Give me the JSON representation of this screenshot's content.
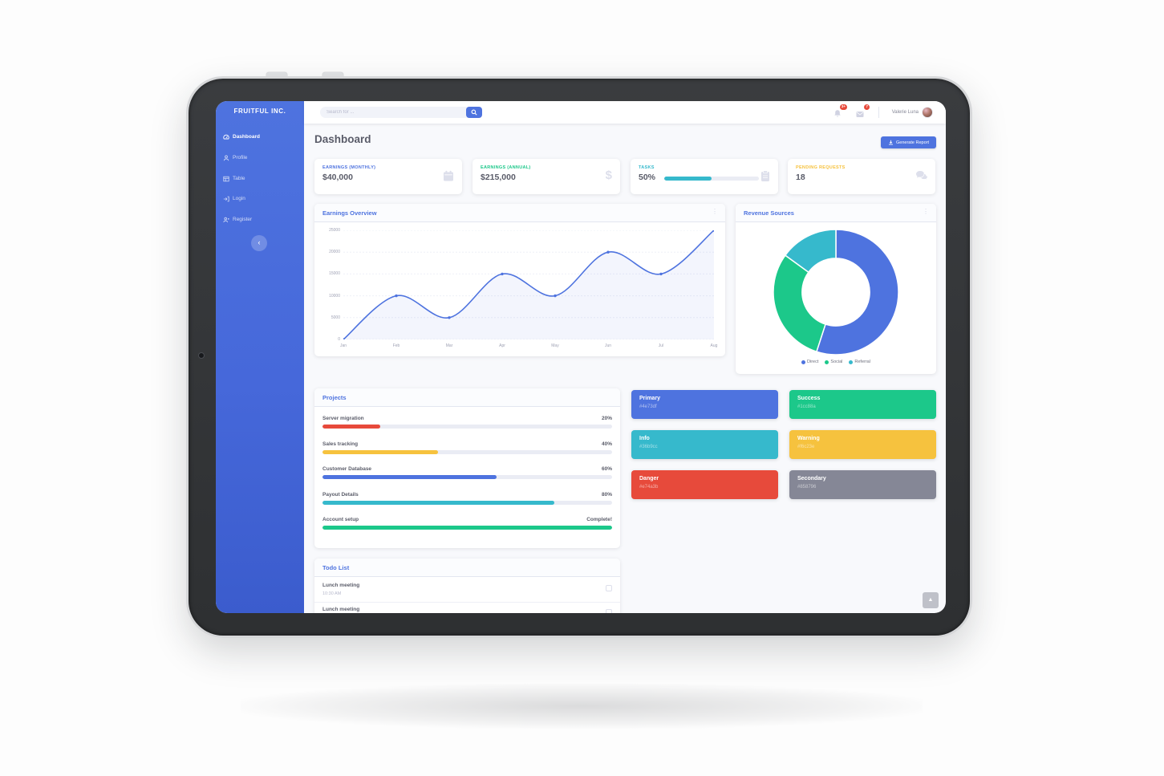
{
  "brand": "FRUITFUL INC.",
  "sidebar": {
    "items": [
      {
        "label": "Dashboard",
        "icon": "tachometer-icon",
        "active": true
      },
      {
        "label": "Profile",
        "icon": "user-icon",
        "active": false
      },
      {
        "label": "Table",
        "icon": "table-icon",
        "active": false
      },
      {
        "label": "Login",
        "icon": "sign-in-icon",
        "active": false
      },
      {
        "label": "Register",
        "icon": "user-plus-icon",
        "active": false
      }
    ],
    "collapse_icon": "‹"
  },
  "topbar": {
    "search_placeholder": "Search for ...",
    "alerts_badge": "3+",
    "messages_badge": "7",
    "user_name": "Valerie Luna"
  },
  "page": {
    "title": "Dashboard",
    "generate_report_label": "Generate Report"
  },
  "icons": {
    "kebab": "⋮",
    "scroll_top": "▲",
    "dollar": "$"
  },
  "stat_cards": [
    {
      "label": "EARNINGS (MONTHLY)",
      "value": "$40,000",
      "accent": "#4e73df",
      "icon": "calendar-icon"
    },
    {
      "label": "EARNINGS (ANNUAL)",
      "value": "$215,000",
      "accent": "#1cc88a",
      "icon": "dollar-icon"
    },
    {
      "label": "TASKS",
      "value": "50%",
      "accent": "#36b9cc",
      "icon": "clipboard-icon",
      "progress": 50
    },
    {
      "label": "PENDING REQUESTS",
      "value": "18",
      "accent": "#f6c23e",
      "icon": "comments-icon"
    }
  ],
  "chart_data": [
    {
      "type": "line",
      "title": "Earnings Overview",
      "x": [
        "Jan",
        "Feb",
        "Mar",
        "Apr",
        "May",
        "Jun",
        "Jul",
        "Aug"
      ],
      "values": [
        0,
        10000,
        5000,
        15000,
        10000,
        20000,
        15000,
        25000
      ],
      "ylim": [
        0,
        25000
      ],
      "yticks": [
        0,
        5000,
        10000,
        15000,
        20000,
        25000
      ],
      "line_color": "#4e73df",
      "fill_color": "rgba(78,115,223,0.07)",
      "grid": true,
      "legend_position": "none"
    },
    {
      "type": "pie",
      "title": "Revenue Sources",
      "labels": [
        "Direct",
        "Social",
        "Referral"
      ],
      "values": [
        55,
        30,
        15
      ],
      "colors": [
        "#4e73df",
        "#1cc88a",
        "#36b9cc"
      ],
      "donut_hole_ratio": 0.54,
      "legend_position": "bottom"
    }
  ],
  "projects": {
    "title": "Projects",
    "items": [
      {
        "name": "Server migration",
        "pct_label": "20%",
        "value": 20,
        "color": "#e74a3b"
      },
      {
        "name": "Sales tracking",
        "pct_label": "40%",
        "value": 40,
        "color": "#f6c23e"
      },
      {
        "name": "Customer Database",
        "pct_label": "60%",
        "value": 60,
        "color": "#4e73df"
      },
      {
        "name": "Payout Details",
        "pct_label": "80%",
        "value": 80,
        "color": "#36b9cc"
      },
      {
        "name": "Account setup",
        "pct_label": "Complete!",
        "value": 100,
        "color": "#1cc88a"
      }
    ]
  },
  "color_cards": [
    {
      "name": "Primary",
      "hex": "#4e73df"
    },
    {
      "name": "Success",
      "hex": "#1cc88a"
    },
    {
      "name": "Info",
      "hex": "#36b9cc"
    },
    {
      "name": "Warning",
      "hex": "#f6c23e"
    },
    {
      "name": "Danger",
      "hex": "#e74a3b"
    },
    {
      "name": "Secondary",
      "hex": "#858796"
    }
  ],
  "todo": {
    "title": "Todo List",
    "items": [
      {
        "title": "Lunch meeting",
        "time": "10:30 AM"
      },
      {
        "title": "Lunch meeting",
        "time": ""
      }
    ]
  },
  "theme": {
    "primary": "#4e73df",
    "success": "#1cc88a",
    "info": "#36b9cc",
    "warning": "#f6c23e",
    "danger": "#e74a3b",
    "secondary": "#858796",
    "bg": "#f8f9fc",
    "text": "#5a5c69"
  }
}
